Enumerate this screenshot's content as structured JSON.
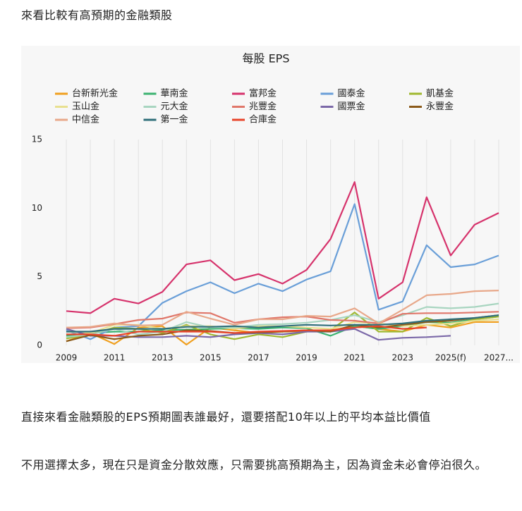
{
  "heading": "來看比較有高預期的金融類股",
  "paragraphs": [
    "直接來看金融類股的EPS預期圖表誰最好，還要搭配10年以上的平均本益比價值",
    "不用選擇太多，現在只是資金分散效應，只需要挑高預期為主，因為資金未必會停泊很久。"
  ],
  "chart_data": {
    "type": "line",
    "title": "每股 EPS",
    "categories": [
      "2009",
      null,
      "2011",
      null,
      "2013",
      null,
      "2015",
      null,
      "2017",
      null,
      "2019",
      null,
      "2021",
      null,
      "2023",
      null,
      "2025(f)",
      null,
      "2027..."
    ],
    "ylim": [
      0,
      15
    ],
    "yticks": [
      0,
      5,
      10,
      15
    ],
    "grid": true,
    "series": [
      {
        "name": "台新新光金",
        "color": "#f0a020",
        "values": [
          0.3,
          0.9,
          0.1,
          1.3,
          1.4,
          0.05,
          1.3,
          1.1,
          0.9,
          1.0,
          1.05,
          1.1,
          1.4,
          1.2,
          1.0,
          1.5,
          1.3,
          1.7,
          1.7
        ]
      },
      {
        "name": "華南金",
        "color": "#3cb371",
        "values": [
          0.7,
          0.9,
          1.0,
          1.0,
          1.1,
          1.15,
          1.2,
          1.25,
          1.2,
          1.3,
          1.25,
          0.7,
          1.4,
          1.2,
          1.4,
          1.7,
          1.65,
          1.9,
          2.1
        ]
      },
      {
        "name": "富邦金",
        "color": "#d6336c",
        "values": [
          2.5,
          2.35,
          3.4,
          3.05,
          3.9,
          5.9,
          6.2,
          4.75,
          5.2,
          4.5,
          5.5,
          7.75,
          11.9,
          3.4,
          4.6,
          10.8,
          6.55,
          8.8,
          9.65
        ]
      },
      {
        "name": "國泰金",
        "color": "#6a9fd8",
        "values": [
          1.1,
          0.45,
          1.3,
          1.4,
          3.1,
          3.95,
          4.6,
          3.8,
          4.5,
          3.95,
          4.8,
          5.4,
          10.3,
          2.6,
          3.2,
          7.3,
          5.7,
          5.9,
          6.55
        ]
      },
      {
        "name": "凱基金",
        "color": "#a0b830",
        "values": [
          0.5,
          0.8,
          1.3,
          1.2,
          0.9,
          1.5,
          0.8,
          0.45,
          0.8,
          0.6,
          1.0,
          1.1,
          2.4,
          1.0,
          1.0,
          2.0,
          1.4,
          1.9,
          2.1
        ]
      },
      {
        "name": "玉山金",
        "color": "#e8e090",
        "values": [
          1.0,
          0.9,
          1.5,
          1.5,
          1.2,
          1.4,
          1.4,
          1.2,
          1.4,
          1.4,
          1.3,
          1.2,
          1.7,
          1.6,
          1.4,
          1.5,
          1.6,
          1.8,
          1.9
        ]
      },
      {
        "name": "元大金",
        "color": "#a8d5c0",
        "values": [
          0.6,
          0.8,
          1.2,
          0.8,
          1.0,
          1.7,
          1.3,
          1.3,
          1.5,
          1.55,
          1.65,
          1.85,
          2.2,
          1.7,
          2.2,
          2.8,
          2.7,
          2.8,
          3.05
        ]
      },
      {
        "name": "兆豐金",
        "color": "#e0776a",
        "values": [
          1.25,
          1.3,
          1.55,
          1.85,
          1.95,
          2.4,
          2.35,
          1.65,
          1.9,
          2.05,
          2.1,
          1.85,
          1.8,
          1.6,
          2.3,
          2.35,
          2.35,
          2.4,
          2.45
        ]
      },
      {
        "name": "國票金",
        "color": "#7b68a8",
        "values": [
          1.2,
          0.7,
          0.7,
          0.6,
          0.6,
          0.7,
          0.6,
          0.8,
          0.9,
          0.8,
          1.0,
          1.0,
          1.2,
          0.4,
          0.55,
          0.6,
          0.7,
          null,
          null
        ]
      },
      {
        "name": "永豐金",
        "color": "#8b5a1a",
        "values": [
          0.3,
          0.75,
          0.45,
          0.7,
          0.8,
          1.1,
          1.05,
          0.9,
          0.95,
          1.0,
          1.1,
          1.0,
          1.5,
          1.3,
          1.5,
          1.7,
          1.8,
          2.0,
          2.2
        ]
      },
      {
        "name": "中信金",
        "color": "#e8a88a",
        "values": [
          1.3,
          1.35,
          1.6,
          1.45,
          1.5,
          2.45,
          1.95,
          1.5,
          1.9,
          1.9,
          2.15,
          2.1,
          2.7,
          1.6,
          2.6,
          3.65,
          3.75,
          3.95,
          4.0
        ]
      },
      {
        "name": "第一金",
        "color": "#2f6f7a",
        "values": [
          1.0,
          1.0,
          1.2,
          1.2,
          1.2,
          1.35,
          1.35,
          1.4,
          1.3,
          1.4,
          1.5,
          1.45,
          1.5,
          1.5,
          1.6,
          1.8,
          1.9,
          2.0,
          2.2
        ]
      },
      {
        "name": "合庫金",
        "color": "#e8442a",
        "values": [
          0.8,
          0.8,
          0.7,
          1.0,
          1.0,
          1.0,
          1.0,
          0.9,
          1.0,
          1.05,
          1.1,
          1.1,
          1.3,
          1.4,
          1.2,
          1.3,
          null,
          null,
          null
        ]
      }
    ]
  }
}
